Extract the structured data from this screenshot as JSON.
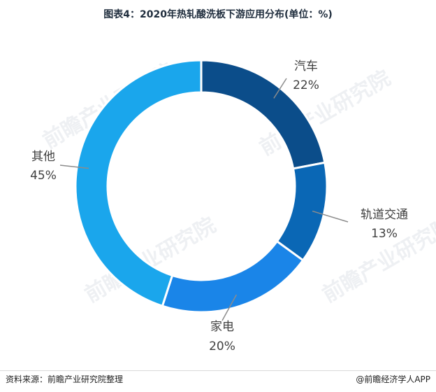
{
  "chart_data": {
    "type": "pie",
    "title": "图表4：2020年热轧酸洗板下游应用分布(单位：%)",
    "donut": true,
    "series": [
      {
        "slices": [
          {
            "label": "汽车",
            "value": 22,
            "value_label": "22%",
            "color": "#0b4d8a"
          },
          {
            "label": "轨道交通",
            "value": 13,
            "value_label": "13%",
            "color": "#0a67b5"
          },
          {
            "label": "家电",
            "value": 20,
            "value_label": "20%",
            "color": "#1a85e8"
          },
          {
            "label": "其他",
            "value": 45,
            "value_label": "45%",
            "color": "#1aa6ec"
          }
        ]
      }
    ]
  },
  "footer": {
    "source": "资料来源：前瞻产业研究院整理",
    "brand": "@前瞻经济学人APP"
  },
  "watermark": "前瞻产业研究院"
}
